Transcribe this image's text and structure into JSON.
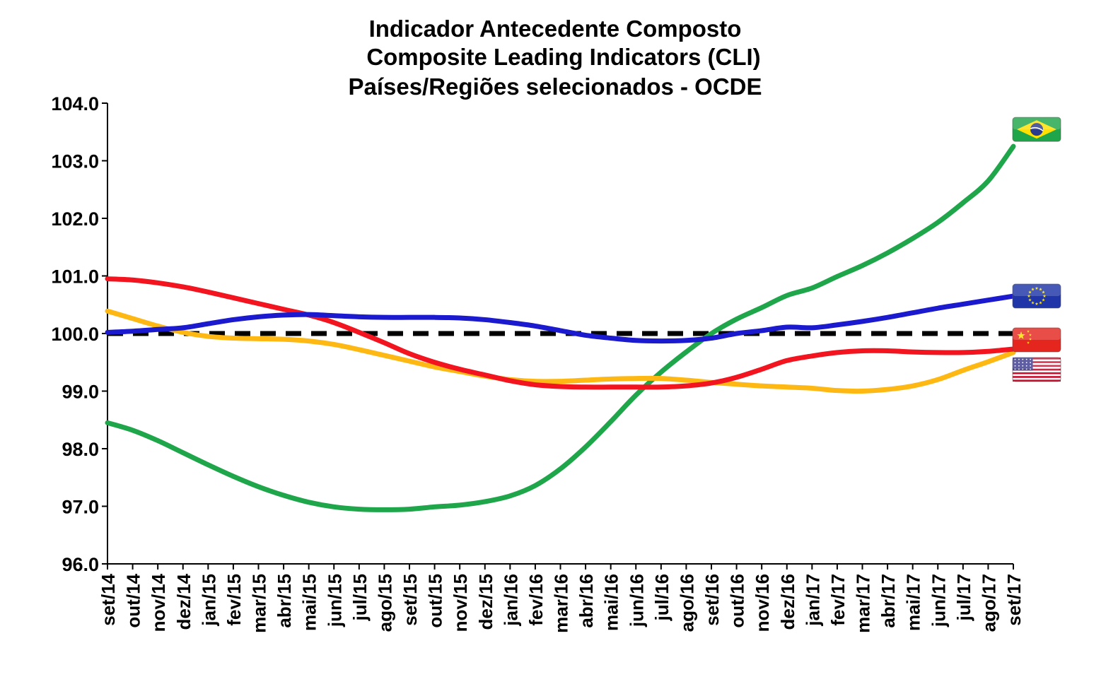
{
  "chart_data": {
    "type": "line",
    "title_lines": [
      "Indicador Antecedente Composto",
      "Composite Leading Indicators (CLI)",
      "Países/Regiões selecionados - OCDE"
    ],
    "xlabel": "",
    "ylabel": "",
    "ylim": [
      96.0,
      104.0
    ],
    "y_ticks": [
      "96.0",
      "97.0",
      "98.0",
      "99.0",
      "100.0",
      "101.0",
      "102.0",
      "103.0",
      "104.0"
    ],
    "categories": [
      "set/14",
      "out/14",
      "nov/14",
      "dez/14",
      "jan/15",
      "fev/15",
      "mar/15",
      "abr/15",
      "mai/15",
      "jun/15",
      "jul/15",
      "ago/15",
      "set/15",
      "out/15",
      "nov/15",
      "dez/15",
      "jan/16",
      "fev/16",
      "mar/16",
      "abr/16",
      "mai/16",
      "jun/16",
      "jul/16",
      "ago/16",
      "set/16",
      "out/16",
      "nov/16",
      "dez/16",
      "jan/17",
      "fev/17",
      "mar/17",
      "abr/17",
      "mai/17",
      "jun/17",
      "jul/17",
      "ago/17",
      "set/17"
    ],
    "grid": false,
    "legend": "flag icons at right end of series",
    "reference_line": {
      "value": 100.0,
      "style": "dashed",
      "color": "#000000"
    },
    "series": [
      {
        "flag": "brazil-flag-icon",
        "color": "#1FA64A",
        "values": [
          98.45,
          98.32,
          98.14,
          97.93,
          97.72,
          97.52,
          97.34,
          97.19,
          97.07,
          96.99,
          96.95,
          96.94,
          96.95,
          96.99,
          97.02,
          97.08,
          97.18,
          97.36,
          97.65,
          98.03,
          98.47,
          98.93,
          99.33,
          99.68,
          100.0,
          100.25,
          100.45,
          100.66,
          100.79,
          100.99,
          101.18,
          101.4,
          101.65,
          101.93,
          102.27,
          102.65,
          103.25
        ]
      },
      {
        "flag": "eu-flag-icon",
        "color": "#1B1ACE",
        "values": [
          100.02,
          100.04,
          100.07,
          100.1,
          100.17,
          100.24,
          100.29,
          100.32,
          100.33,
          100.31,
          100.29,
          100.28,
          100.28,
          100.28,
          100.27,
          100.24,
          100.19,
          100.13,
          100.05,
          99.97,
          99.92,
          99.88,
          99.87,
          99.88,
          99.92,
          100.0,
          100.05,
          100.11,
          100.1,
          100.15,
          100.21,
          100.28,
          100.36,
          100.44,
          100.51,
          100.58,
          100.65
        ]
      },
      {
        "flag": "china-flag-icon",
        "color": "#F2141E",
        "values": [
          100.95,
          100.93,
          100.88,
          100.81,
          100.72,
          100.62,
          100.52,
          100.42,
          100.32,
          100.19,
          100.02,
          99.84,
          99.65,
          99.5,
          99.38,
          99.28,
          99.18,
          99.11,
          99.08,
          99.07,
          99.07,
          99.07,
          99.07,
          99.09,
          99.14,
          99.24,
          99.38,
          99.53,
          99.61,
          99.67,
          99.7,
          99.7,
          99.68,
          99.67,
          99.67,
          99.69,
          99.73
        ]
      },
      {
        "flag": "usa-flag-icon",
        "color": "#FDB813",
        "values": [
          100.39,
          100.26,
          100.13,
          100.02,
          99.95,
          99.92,
          99.91,
          99.9,
          99.87,
          99.81,
          99.72,
          99.62,
          99.52,
          99.42,
          99.34,
          99.26,
          99.2,
          99.17,
          99.17,
          99.19,
          99.21,
          99.22,
          99.22,
          99.19,
          99.15,
          99.12,
          99.09,
          99.07,
          99.05,
          99.01,
          99.0,
          99.03,
          99.09,
          99.2,
          99.36,
          99.51,
          99.67
        ]
      }
    ]
  },
  "flags": {
    "brazil": {
      "field": "#1FA64A",
      "diamond": "#FFE000",
      "disc": "#2A3A8C"
    },
    "eu": {
      "field": "#1F35A8",
      "stars": "#FFE400"
    },
    "china": {
      "field": "#E5261F",
      "star": "#FFDF00"
    },
    "usa": {
      "red": "#C8102E",
      "white": "#FFFFFF",
      "canton": "#3C3B8E"
    }
  }
}
